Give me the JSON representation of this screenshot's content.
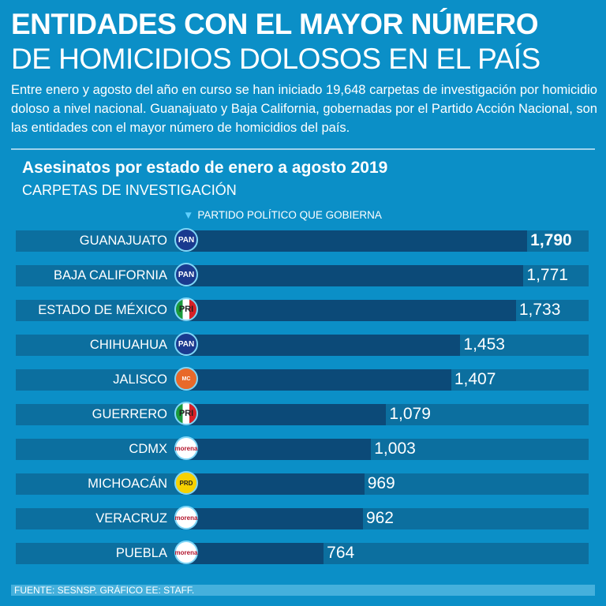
{
  "header": {
    "title_line1": "ENTIDADES CON EL MAYOR NÚMERO",
    "title_line2": "DE HOMICIDIOS DOLOSOS EN EL PAÍS",
    "intro": "Entre enero y agosto del año en curso se han iniciado 19,648 carpetas de investigación por homicidio doloso a nivel nacional. Guanajuato y Baja California, gobernadas por el Partido Acción Nacional, son las entidades con el mayor número de homicidios del país."
  },
  "colors": {
    "background": "#0b8fc7",
    "track": "#0c6f9f",
    "bar": "#0c4a78"
  },
  "chart_data": {
    "type": "bar",
    "orientation": "horizontal",
    "title": "Asesinatos por estado de enero a agosto 2019",
    "subtitle": "CARPETAS DE INVESTIGACIÓN",
    "legend": "PARTIDO POLÍTICO QUE GOBIERNA",
    "categories": [
      "GUANAJUATO",
      "BAJA CALIFORNIA",
      "ESTADO DE MÉXICO",
      "CHIHUAHUA",
      "JALISCO",
      "GUERRERO",
      "CDMX",
      "MICHOACÁN",
      "VERACRUZ",
      "PUEBLA"
    ],
    "values": [
      1790,
      1771,
      1733,
      1453,
      1407,
      1079,
      1003,
      969,
      962,
      764
    ],
    "value_labels": [
      "1,790",
      "1,771",
      "1,733",
      "1,453",
      "1,407",
      "1,079",
      "1,003",
      "969",
      "962",
      "764"
    ],
    "parties": [
      "PAN",
      "PAN",
      "PRI",
      "PAN",
      "MC",
      "PRI",
      "morena",
      "PRD",
      "morena",
      "morena"
    ]
  },
  "source": "FUENTE: SESNSP. GRÁFICO EE: STAFF."
}
